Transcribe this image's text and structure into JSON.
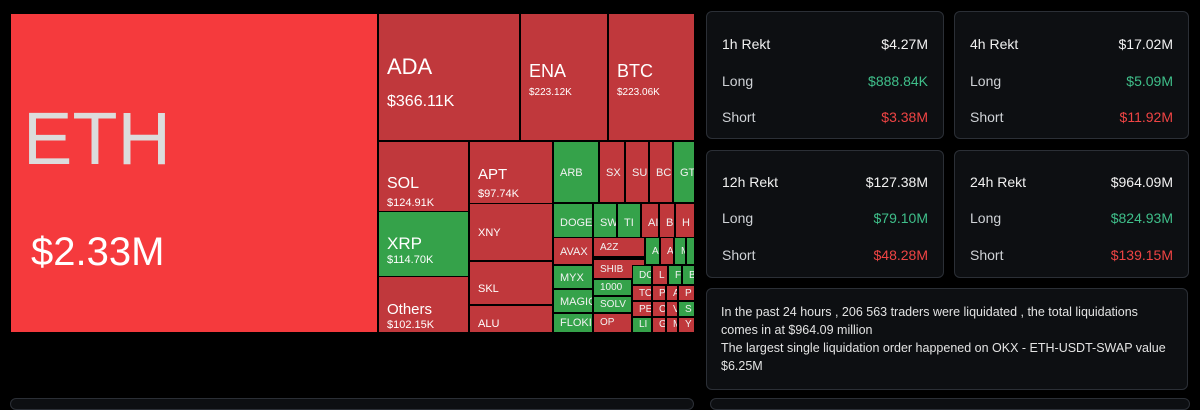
{
  "colors": {
    "bright_red": "#f53a3d",
    "red": "#c0383c",
    "green": "#35a24a",
    "long_green": "#3fbf8a",
    "short_red": "#ef4444"
  },
  "treemap": {
    "tiles": [
      {
        "symbol": "ETH",
        "value": "$2.33M",
        "color": "bright_red"
      },
      {
        "symbol": "ADA",
        "value": "$366.11K",
        "color": "red"
      },
      {
        "symbol": "ENA",
        "value": "$223.12K",
        "color": "red"
      },
      {
        "symbol": "BTC",
        "value": "$223.06K",
        "color": "red"
      },
      {
        "symbol": "SOL",
        "value": "$124.91K",
        "color": "red"
      },
      {
        "symbol": "APT",
        "value": "$97.74K",
        "color": "red"
      },
      {
        "symbol": "XRP",
        "value": "$114.70K",
        "color": "green"
      },
      {
        "symbol": "Others",
        "value": "$102.15K",
        "color": "red"
      },
      {
        "symbol": "XNY",
        "value": "",
        "color": "red"
      },
      {
        "symbol": "SKL",
        "value": "",
        "color": "red"
      },
      {
        "symbol": "ALU",
        "value": "",
        "color": "red"
      },
      {
        "symbol": "ARB",
        "value": "",
        "color": "green"
      },
      {
        "symbol": "SX",
        "value": "",
        "color": "red"
      },
      {
        "symbol": "SU",
        "value": "",
        "color": "red"
      },
      {
        "symbol": "BC",
        "value": "",
        "color": "red"
      },
      {
        "symbol": "GT",
        "value": "",
        "color": "green"
      },
      {
        "symbol": "DOGE",
        "value": "",
        "color": "green"
      },
      {
        "symbol": "SW",
        "value": "",
        "color": "green"
      },
      {
        "symbol": "TI",
        "value": "",
        "color": "green"
      },
      {
        "symbol": "AI",
        "value": "",
        "color": "red"
      },
      {
        "symbol": "BN",
        "value": "",
        "color": "red"
      },
      {
        "symbol": "H",
        "value": "",
        "color": "red"
      },
      {
        "symbol": "AVAX",
        "value": "",
        "color": "red"
      },
      {
        "symbol": "A2Z",
        "value": "",
        "color": "red"
      },
      {
        "symbol": "A",
        "value": "",
        "color": "green"
      },
      {
        "symbol": "A",
        "value": "",
        "color": "red"
      },
      {
        "symbol": "M",
        "value": "",
        "color": "green"
      },
      {
        "symbol": "",
        "value": "",
        "color": "green"
      },
      {
        "symbol": "MYX",
        "value": "",
        "color": "green"
      },
      {
        "symbol": "SHIB",
        "value": "",
        "color": "red"
      },
      {
        "symbol": "DO",
        "value": "",
        "color": "green"
      },
      {
        "symbol": "L",
        "value": "",
        "color": "red"
      },
      {
        "symbol": "F",
        "value": "",
        "color": "green"
      },
      {
        "symbol": "B",
        "value": "",
        "color": "green"
      },
      {
        "symbol": "MAGIC",
        "value": "",
        "color": "green"
      },
      {
        "symbol": "1000",
        "value": "",
        "color": "green"
      },
      {
        "symbol": "TO",
        "value": "",
        "color": "red"
      },
      {
        "symbol": "PI",
        "value": "",
        "color": "red"
      },
      {
        "symbol": "A",
        "value": "",
        "color": "red"
      },
      {
        "symbol": "P",
        "value": "",
        "color": "red"
      },
      {
        "symbol": "SOLV",
        "value": "",
        "color": "green"
      },
      {
        "symbol": "PE",
        "value": "",
        "color": "red"
      },
      {
        "symbol": "C",
        "value": "",
        "color": "red"
      },
      {
        "symbol": "V",
        "value": "",
        "color": "red"
      },
      {
        "symbol": "S",
        "value": "",
        "color": "green"
      },
      {
        "symbol": "FLOKI",
        "value": "",
        "color": "green"
      },
      {
        "symbol": "OP",
        "value": "",
        "color": "red"
      },
      {
        "symbol": "LI",
        "value": "",
        "color": "green"
      },
      {
        "symbol": "GI",
        "value": "",
        "color": "red"
      },
      {
        "symbol": "M",
        "value": "",
        "color": "red"
      },
      {
        "symbol": "Y",
        "value": "",
        "color": "red"
      }
    ]
  },
  "cards": [
    {
      "title": "1h Rekt",
      "total": "$4.27M",
      "long_label": "Long",
      "long": "$888.84K",
      "short_label": "Short",
      "short": "$3.38M"
    },
    {
      "title": "4h Rekt",
      "total": "$17.02M",
      "long_label": "Long",
      "long": "$5.09M",
      "short_label": "Short",
      "short": "$11.92M"
    },
    {
      "title": "12h Rekt",
      "total": "$127.38M",
      "long_label": "Long",
      "long": "$79.10M",
      "short_label": "Short",
      "short": "$48.28M"
    },
    {
      "title": "24h Rekt",
      "total": "$964.09M",
      "long_label": "Long",
      "long": "$824.93M",
      "short_label": "Short",
      "short": "$139.15M"
    }
  ],
  "summary": {
    "line1": "In the past 24 hours , 206 563 traders were liquidated , the total liquidations comes in at $964.09 million",
    "line2": "The largest single liquidation order happened on OKX - ETH-USDT-SWAP value $6.25M"
  }
}
